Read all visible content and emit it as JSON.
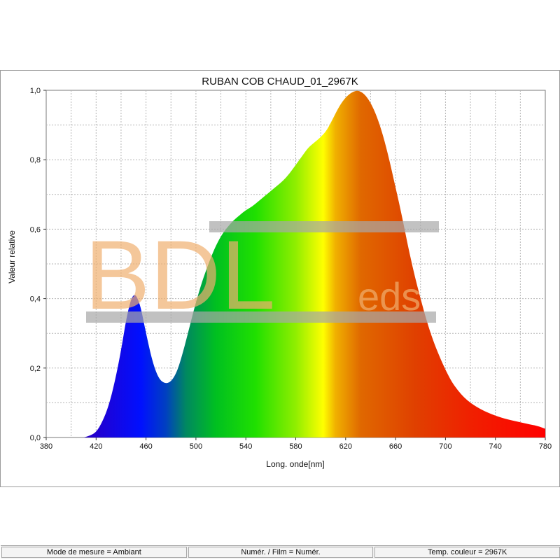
{
  "chart_data": {
    "type": "area",
    "title": "RUBAN COB CHAUD_01_2967K",
    "xlabel": "Long. onde[nm]",
    "ylabel": "Valeur relative",
    "xlim": [
      380,
      780
    ],
    "ylim": [
      0,
      1.0
    ],
    "xticks": [
      "380",
      "420",
      "460",
      "500",
      "540",
      "580",
      "620",
      "660",
      "700",
      "740",
      "780"
    ],
    "yticks": [
      "0,0",
      "0,2",
      "0,4",
      "0,6",
      "0,8",
      "1,0"
    ],
    "grid": true,
    "fill": "visible-spectrum color gradient",
    "x": [
      410,
      415,
      420,
      425,
      430,
      435,
      440,
      445,
      450,
      455,
      460,
      465,
      470,
      475,
      480,
      485,
      490,
      495,
      500,
      505,
      510,
      515,
      520,
      525,
      530,
      535,
      540,
      545,
      550,
      555,
      560,
      565,
      570,
      575,
      580,
      585,
      590,
      595,
      600,
      605,
      610,
      615,
      620,
      625,
      630,
      635,
      640,
      645,
      650,
      655,
      660,
      665,
      670,
      675,
      680,
      685,
      690,
      695,
      700,
      705,
      710,
      715,
      720,
      725,
      730,
      735,
      740,
      745,
      750,
      755,
      760,
      765,
      770,
      775,
      780
    ],
    "values": [
      0.0,
      0.005,
      0.015,
      0.045,
      0.09,
      0.16,
      0.25,
      0.36,
      0.42,
      0.39,
      0.3,
      0.22,
      0.17,
      0.155,
      0.16,
      0.19,
      0.25,
      0.32,
      0.39,
      0.45,
      0.5,
      0.545,
      0.58,
      0.605,
      0.625,
      0.64,
      0.655,
      0.665,
      0.68,
      0.695,
      0.71,
      0.725,
      0.74,
      0.76,
      0.785,
      0.81,
      0.835,
      0.85,
      0.865,
      0.885,
      0.92,
      0.955,
      0.98,
      0.995,
      1.0,
      0.99,
      0.965,
      0.925,
      0.87,
      0.8,
      0.72,
      0.64,
      0.55,
      0.47,
      0.4,
      0.335,
      0.28,
      0.235,
      0.195,
      0.16,
      0.135,
      0.115,
      0.1,
      0.088,
      0.078,
      0.07,
      0.063,
      0.057,
      0.052,
      0.048,
      0.044,
      0.04,
      0.036,
      0.032,
      0.025
    ]
  },
  "watermark": {
    "text_main": "BDL",
    "text_sub": "eds",
    "color": "#f0b070"
  },
  "status_bar": {
    "measure_mode": "Mode de mesure = Ambiant",
    "numeric_film": "Numér. / Film = Numér.",
    "color_temp": "Temp. couleur = 2967K"
  }
}
